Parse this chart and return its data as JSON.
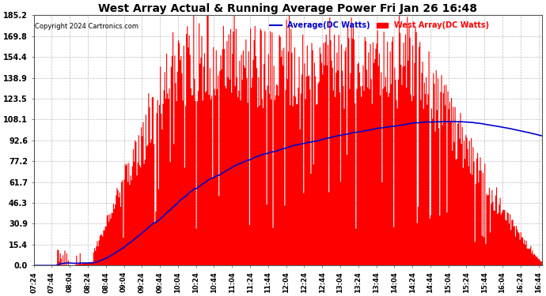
{
  "title": "West Array Actual & Running Average Power Fri Jan 26 16:48",
  "copyright": "Copyright 2024 Cartronics.com",
  "legend_avg": "Average(DC Watts)",
  "legend_west": "West Array(DC Watts)",
  "ylabel_values": [
    0.0,
    15.4,
    30.9,
    46.3,
    61.7,
    77.2,
    92.6,
    108.1,
    123.5,
    138.9,
    154.4,
    169.8,
    185.2
  ],
  "ymax": 185.2,
  "ymin": 0.0,
  "background_color": "#ffffff",
  "plot_bg_color": "#ffffff",
  "grid_color": "#bbbbbb",
  "bar_color": "#ff0000",
  "avg_line_color": "#0000cc",
  "title_color": "#000000",
  "copyright_color": "#000000",
  "avg_legend_color": "#0000cc",
  "west_legend_color": "#ff0000"
}
